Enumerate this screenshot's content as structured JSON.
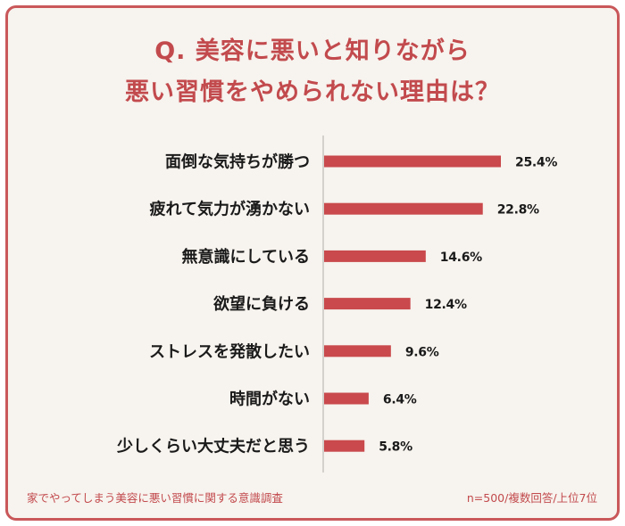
{
  "title_line1": "Q. 美容に悪いと知りながら",
  "title_line2": "悪い習慣をやめられない理由は？",
  "footer_note": "家でやってしまう美容に悪い習慣に関する意識調査",
  "footer_sample": "n=500/複数回答/上位7位",
  "colors": {
    "bar": "#c9494c",
    "title": "#c24a4d",
    "background": "#f7f3ee",
    "border": "#c9585a"
  },
  "chart_data": {
    "type": "bar",
    "orientation": "horizontal",
    "categories": [
      "面倒な気持ちが勝つ",
      "疲れて気力が湧かない",
      "無意識にしている",
      "欲望に負ける",
      "ストレスを発散したい",
      "時間がない",
      "少しくらい大丈夫だと思う"
    ],
    "values": [
      25.4,
      22.8,
      14.6,
      12.4,
      9.6,
      6.4,
      5.8
    ],
    "value_labels": [
      "25.4%",
      "22.8%",
      "14.6%",
      "12.4%",
      "9.6%",
      "6.4%",
      "5.8%"
    ],
    "unit": "%",
    "grid": false,
    "xlim": [
      0,
      25.4
    ]
  }
}
